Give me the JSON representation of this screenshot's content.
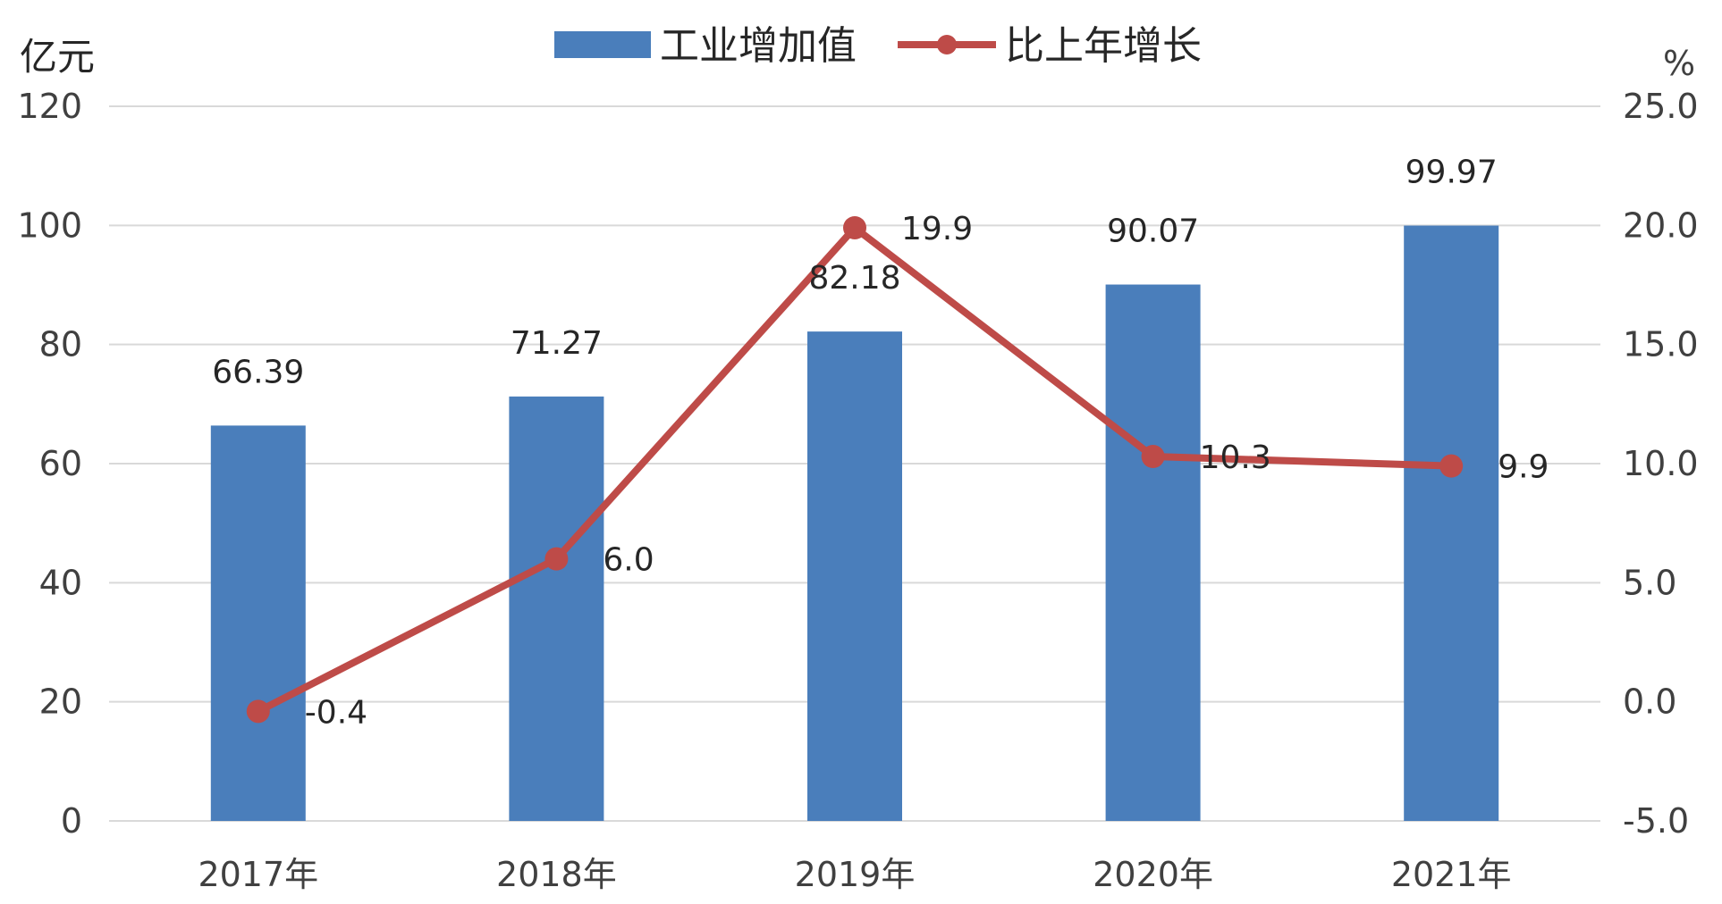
{
  "chart_data": {
    "type": "bar",
    "categories": [
      "2017年",
      "2018年",
      "2019年",
      "2020年",
      "2021年"
    ],
    "series": [
      {
        "name": "工业增加值",
        "type": "bar",
        "axis": "left",
        "color": "#4a7ebb",
        "values": [
          66.39,
          71.27,
          82.18,
          90.07,
          99.97
        ],
        "labels": [
          "66.39",
          "71.27",
          "82.18",
          "90.07",
          "99.97"
        ]
      },
      {
        "name": "比上年增长",
        "type": "line",
        "axis": "right",
        "color": "#be4b48",
        "values": [
          -0.4,
          6.0,
          19.9,
          10.3,
          9.9
        ],
        "labels": [
          "-0.4",
          "6.0",
          "19.9",
          "10.3",
          "9.9"
        ]
      }
    ],
    "left_axis": {
      "unit": "亿元",
      "min": 0,
      "max": 120,
      "ticks": [
        "0",
        "20",
        "40",
        "60",
        "80",
        "100",
        "120"
      ]
    },
    "right_axis": {
      "unit": "%",
      "min": -5,
      "max": 25,
      "ticks": [
        "-5.0",
        "0.0",
        "5.0",
        "10.0",
        "15.0",
        "20.0",
        "25.0"
      ]
    },
    "grid": true,
    "legend_position": "top"
  }
}
